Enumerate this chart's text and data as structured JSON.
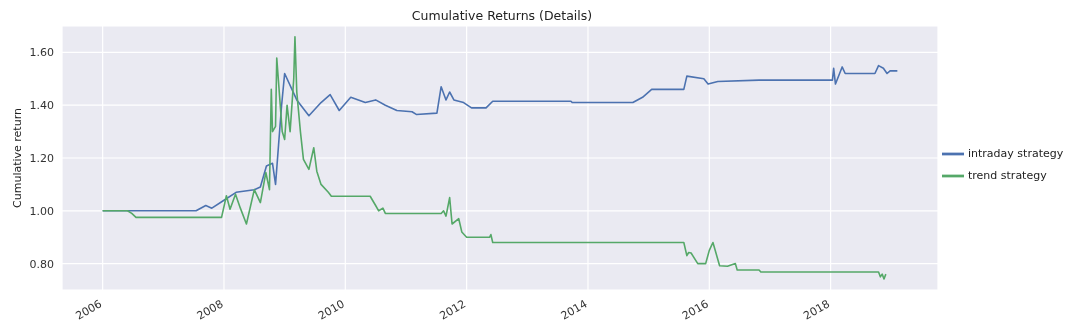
{
  "chart_data": {
    "type": "line",
    "title": "Cumulative Returns (Details)",
    "ylabel": "Cumulative return",
    "xlim": [
      2005.33,
      2019.77
    ],
    "xticks": [
      2006,
      2008,
      2010,
      2012,
      2014,
      2016,
      2018
    ],
    "ylim": [
      0.7,
      1.7
    ],
    "yticks": [
      {
        "value": 0.8,
        "label": "0.80"
      },
      {
        "value": 1.0,
        "label": "1.00"
      },
      {
        "value": 1.2,
        "label": "1.20"
      },
      {
        "value": 1.4,
        "label": "1.40"
      },
      {
        "value": 1.6,
        "label": "1.60"
      }
    ],
    "grid": true,
    "legend": "right",
    "marker": "none",
    "line_style": "solid",
    "series": [
      {
        "name": "intraday strategy",
        "color": "#4c72b0",
        "x": [
          2006.0,
          2007.54,
          2007.7,
          2007.8,
          2008.0,
          2008.2,
          2008.5,
          2008.6,
          2008.7,
          2008.8,
          2008.85,
          2008.9,
          2008.95,
          2009.0,
          2009.2,
          2009.4,
          2009.6,
          2009.75,
          2009.9,
          2010.09,
          2010.33,
          2010.5,
          2010.66,
          2010.85,
          2011.1,
          2011.17,
          2011.51,
          2011.58,
          2011.66,
          2011.72,
          2011.79,
          2011.95,
          2012.08,
          2012.32,
          2012.43,
          2013.72,
          2013.74,
          2014.74,
          2014.9,
          2015.05,
          2015.58,
          2015.63,
          2015.91,
          2015.98,
          2016.14,
          2016.82,
          2018.03,
          2018.05,
          2018.08,
          2018.19,
          2018.24,
          2018.73,
          2018.79,
          2018.87,
          2018.93,
          2018.98,
          2019.1
        ],
        "values": [
          1.0,
          1.0,
          1.02,
          1.01,
          1.04,
          1.07,
          1.08,
          1.09,
          1.17,
          1.18,
          1.1,
          1.25,
          1.4,
          1.52,
          1.42,
          1.36,
          1.41,
          1.44,
          1.38,
          1.43,
          1.41,
          1.42,
          1.4,
          1.38,
          1.375,
          1.365,
          1.37,
          1.47,
          1.42,
          1.45,
          1.42,
          1.41,
          1.39,
          1.39,
          1.415,
          1.415,
          1.41,
          1.41,
          1.43,
          1.46,
          1.46,
          1.51,
          1.5,
          1.48,
          1.49,
          1.495,
          1.495,
          1.54,
          1.48,
          1.545,
          1.52,
          1.52,
          1.55,
          1.54,
          1.52,
          1.53,
          1.53
        ]
      },
      {
        "name": "trend strategy",
        "color": "#55a868",
        "x": [
          2006.0,
          2006.41,
          2006.48,
          2006.55,
          2007.86,
          2007.96,
          2008.04,
          2008.1,
          2008.19,
          2008.27,
          2008.37,
          2008.5,
          2008.6,
          2008.69,
          2008.75,
          2008.78,
          2008.8,
          2008.85,
          2008.87,
          2008.96,
          2009.0,
          2009.04,
          2009.09,
          2009.15,
          2009.17,
          2009.2,
          2009.26,
          2009.31,
          2009.4,
          2009.48,
          2009.53,
          2009.6,
          2009.72,
          2009.77,
          2010.41,
          2010.5,
          2010.55,
          2010.62,
          2010.66,
          2011.58,
          2011.62,
          2011.66,
          2011.72,
          2011.76,
          2011.87,
          2011.92,
          2012.0,
          2012.38,
          2012.4,
          2012.43,
          2015.58,
          2015.63,
          2015.66,
          2015.7,
          2015.81,
          2015.94,
          2016.0,
          2016.06,
          2016.11,
          2016.17,
          2016.3,
          2016.43,
          2016.46,
          2016.82,
          2016.85,
          2018.79,
          2018.82,
          2018.85,
          2018.88,
          2018.91
        ],
        "values": [
          1.0,
          1.0,
          0.99,
          0.975,
          0.975,
          0.975,
          1.057,
          1.006,
          1.063,
          1.01,
          0.95,
          1.08,
          1.031,
          1.145,
          1.08,
          1.46,
          1.3,
          1.32,
          1.579,
          1.3,
          1.27,
          1.4,
          1.3,
          1.5,
          1.659,
          1.45,
          1.3,
          1.195,
          1.157,
          1.239,
          1.15,
          1.1,
          1.07,
          1.055,
          1.055,
          1.02,
          1.0,
          1.01,
          0.99,
          0.99,
          1.0,
          0.98,
          1.05,
          0.95,
          0.97,
          0.92,
          0.9,
          0.9,
          0.91,
          0.88,
          0.88,
          0.83,
          0.842,
          0.84,
          0.8,
          0.8,
          0.85,
          0.88,
          0.84,
          0.792,
          0.79,
          0.8,
          0.776,
          0.776,
          0.768,
          0.768,
          0.75,
          0.76,
          0.742,
          0.76
        ]
      }
    ]
  }
}
